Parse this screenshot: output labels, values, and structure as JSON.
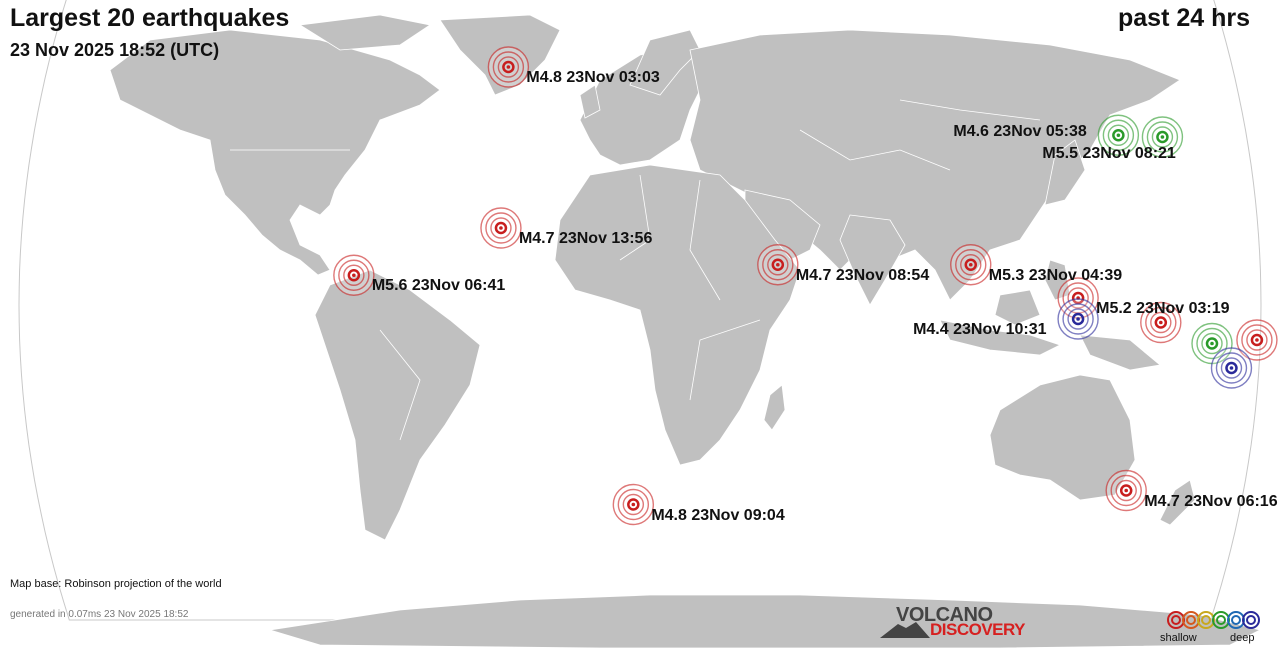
{
  "header": {
    "title": "Largest 20 earthquakes",
    "datetime": "23 Nov 2025 18:52 (UTC)",
    "period": "past 24 hrs"
  },
  "colors": {
    "ocean": "#ffffff",
    "land": "#c0c0c0",
    "border": "#ffffff",
    "shallow": "#c81e1e",
    "intermediate": "#2a9a2a",
    "deep": "#2a2a9a"
  },
  "quakes": [
    {
      "label": "M4.8 23Nov 03:03",
      "lon": -40.0,
      "lat": 68.0,
      "depth": "shallow"
    },
    {
      "label": "M4.6 23Nov 05:38",
      "lon": 142.0,
      "lat": 48.5,
      "depth": "intermediate"
    },
    {
      "label": "M5.5 23Nov 08:21",
      "lon": 155.0,
      "lat": 48.0,
      "depth": "intermediate"
    },
    {
      "label": "M4.7 23Nov 13:56",
      "lon": -40.5,
      "lat": 22.0,
      "depth": "shallow"
    },
    {
      "label": "M4.7 23Nov 08:54",
      "lon": 40.0,
      "lat": 11.5,
      "depth": "shallow"
    },
    {
      "label": "M5.3 23Nov 04:39",
      "lon": 96.0,
      "lat": 11.5,
      "depth": "shallow"
    },
    {
      "label": "M5.6 23Nov 06:41",
      "lon": -83.0,
      "lat": 8.5,
      "depth": "shallow"
    },
    {
      "label": "M5.2 23Nov 03:19",
      "lon": 127.0,
      "lat": 2.0,
      "depth": "shallow"
    },
    {
      "label": "M4.4 23Nov 10:31",
      "lon": 127.0,
      "lat": -4.0,
      "depth": "deep"
    },
    {
      "label": "",
      "lon": 151.0,
      "lat": -5.0,
      "depth": "shallow"
    },
    {
      "label": "",
      "lon": 166.0,
      "lat": -11.0,
      "depth": "intermediate"
    },
    {
      "label": "",
      "lon": 179.0,
      "lat": -10.0,
      "depth": "shallow"
    },
    {
      "label": "",
      "lon": 172.0,
      "lat": -18.0,
      "depth": "deep"
    },
    {
      "label": "M4.7 23Nov 06:16",
      "lon": 145.0,
      "lat": -53.0,
      "depth": "shallow"
    },
    {
      "label": "M4.8 23Nov 09:04",
      "lon": -2.0,
      "lat": -57.0,
      "depth": "shallow"
    }
  ],
  "footer": {
    "map_base": "Map base: Robinson projection of the world",
    "generated": "generated in 0.07ms 23 Nov 2025 18:52"
  },
  "logo": {
    "line1": "VOLCANO",
    "line2": "DISCOVERY"
  },
  "legend": {
    "shallow_label": "shallow",
    "deep_label": "deep",
    "colors": [
      "#c81e1e",
      "#d4581e",
      "#c8a81e",
      "#2a9a2a",
      "#1e6ab4",
      "#2a2a9a"
    ]
  }
}
